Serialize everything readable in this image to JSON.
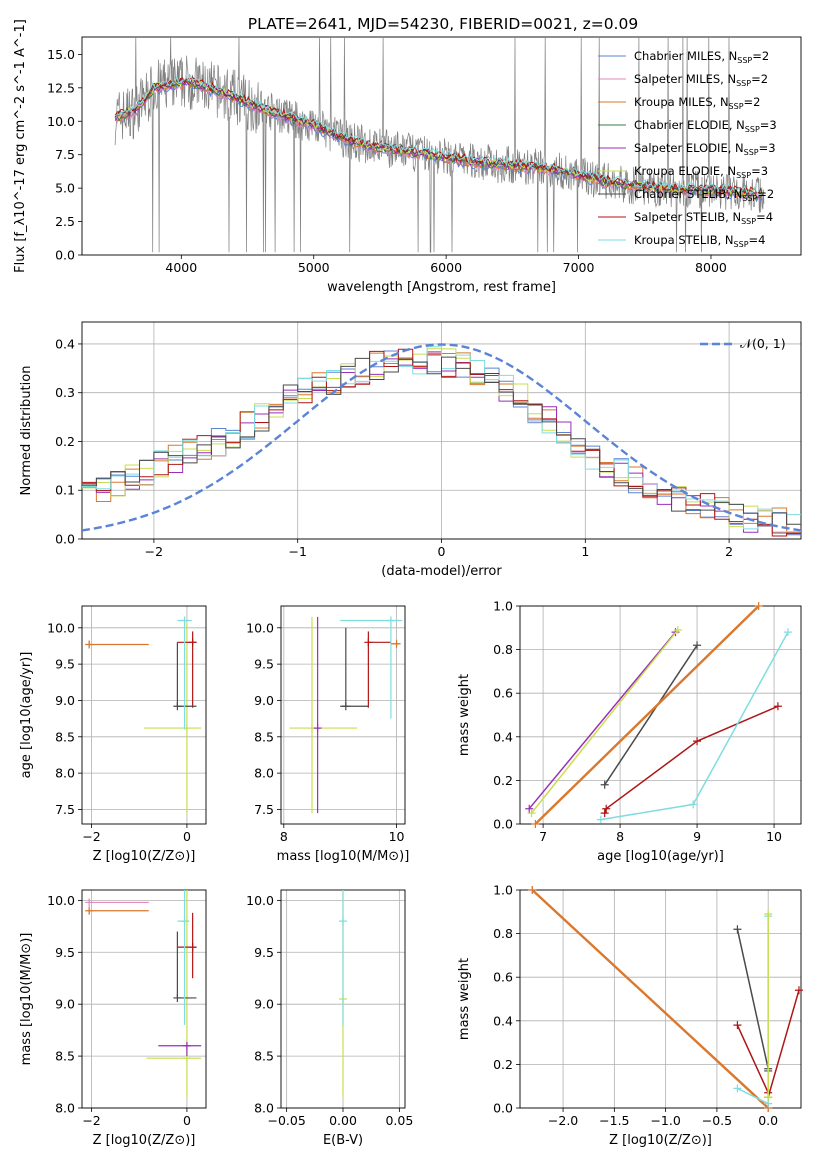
{
  "title": "PLATE=2641, MJD=54230, FIBERID=0021, z=0.09",
  "colors": {
    "chabrier_miles": "#5b84d6",
    "salpeter_miles": "#e389c0",
    "kroupa_miles": "#d9782e",
    "chabrier_elodie": "#3a7d44",
    "salpeter_elodie": "#9b2fb8",
    "kroupa_elodie": "#c9de4f",
    "chabrier_stelib": "#4a4a4a",
    "salpeter_stelib": "#b01515",
    "kroupa_stelib": "#7fdde0",
    "data": "#7f7f7f",
    "gaussian": "#5b84d6",
    "grid": "#b0b0b0"
  },
  "chart_data": [
    {
      "type": "line",
      "panel": "spectrum",
      "xlabel": "wavelength [Angstrom, rest frame]",
      "ylabel": "Flux [f_λ10^-17 erg cm^-2 s^-1 A^-1]",
      "xlim": [
        3250,
        8680
      ],
      "ylim": [
        0,
        16.3
      ],
      "xticks": [
        4000,
        5000,
        6000,
        7000,
        8000
      ],
      "yticks": [
        0.0,
        2.5,
        5.0,
        7.5,
        10.0,
        12.5,
        15.0
      ],
      "ytick_labels": [
        "0.0",
        "2.5",
        "5.0",
        "7.5",
        "10.0",
        "12.5",
        "15.0"
      ],
      "grid": false,
      "legend_position": "top-right",
      "legend": [
        {
          "name": "Chabrier MILES, N",
          "sub": "SSP",
          "suffix": "=2",
          "color_key": "chabrier_miles"
        },
        {
          "name": "Salpeter MILES, N",
          "sub": "SSP",
          "suffix": "=2",
          "color_key": "salpeter_miles"
        },
        {
          "name": "Kroupa MILES, N",
          "sub": "SSP",
          "suffix": "=2",
          "color_key": "kroupa_miles"
        },
        {
          "name": "Chabrier ELODIE, N",
          "sub": "SSP",
          "suffix": "=3",
          "color_key": "chabrier_elodie"
        },
        {
          "name": "Salpeter ELODIE, N",
          "sub": "SSP",
          "suffix": "=3",
          "color_key": "salpeter_elodie"
        },
        {
          "name": "Kroupa ELODIE, N",
          "sub": "SSP",
          "suffix": "=3",
          "color_key": "kroupa_elodie"
        },
        {
          "name": "Chabrier STELIB, N",
          "sub": "SSP",
          "suffix": "=2",
          "color_key": "chabrier_stelib"
        },
        {
          "name": "Salpeter STELIB, N",
          "sub": "SSP",
          "suffix": "=4",
          "color_key": "salpeter_stelib"
        },
        {
          "name": "Kroupa STELIB, N",
          "sub": "SSP",
          "suffix": "=4",
          "color_key": "kroupa_stelib"
        }
      ],
      "continuum": {
        "x": [
          3500,
          3650,
          3800,
          3950,
          4050,
          4200,
          4400,
          4600,
          4800,
          5000,
          5200,
          5400,
          5600,
          5800,
          6000,
          6200,
          6400,
          6600,
          6800,
          7000,
          7200,
          7400,
          7600,
          7800,
          8000,
          8200,
          8400
        ],
        "y": [
          10.3,
          10.8,
          12.5,
          12.8,
          13.0,
          12.5,
          11.8,
          11.0,
          10.3,
          9.7,
          8.8,
          8.2,
          7.9,
          7.6,
          7.3,
          7.0,
          6.8,
          6.6,
          6.4,
          6.0,
          5.5,
          5.2,
          5.0,
          4.9,
          4.8,
          4.7,
          4.5
        ]
      }
    },
    {
      "type": "line",
      "panel": "residual-histogram",
      "xlabel": "(data-model)/error",
      "ylabel": "Normed distribution",
      "xlim": [
        -2.5,
        2.5
      ],
      "ylim": [
        0,
        0.445
      ],
      "xticks": [
        -2,
        -1,
        0,
        1,
        2
      ],
      "xtick_labels": [
        "−2",
        "−1",
        "0",
        "1",
        "2"
      ],
      "yticks": [
        0.0,
        0.1,
        0.2,
        0.3,
        0.4
      ],
      "ytick_labels": [
        "0.0",
        "0.1",
        "0.2",
        "0.3",
        "0.4"
      ],
      "grid": true,
      "legend_position": "top-right",
      "legend_label": "𝒩(0, 1)",
      "gaussian": {
        "mu": 0,
        "sigma": 1
      },
      "histogram_envelope": {
        "x": [
          -2.5,
          -2.2,
          -1.9,
          -1.6,
          -1.3,
          -1.0,
          -0.7,
          -0.4,
          -0.1,
          0.2,
          0.5,
          0.8,
          1.1,
          1.4,
          1.7,
          2.0,
          2.3,
          2.5
        ],
        "y": [
          0.09,
          0.12,
          0.16,
          0.19,
          0.24,
          0.3,
          0.33,
          0.36,
          0.37,
          0.35,
          0.3,
          0.23,
          0.16,
          0.11,
          0.08,
          0.05,
          0.035,
          0.03
        ]
      }
    },
    {
      "type": "scatter",
      "panel": "age-vs-Z",
      "xlabel": "Z [log10(Z/Z⊙)]",
      "ylabel": "age [log10(age/yr)]",
      "xlim": [
        -2.2,
        0.4
      ],
      "ylim": [
        7.3,
        10.3
      ],
      "xticks": [
        -2,
        0
      ],
      "xtick_labels": [
        "−2",
        "0"
      ],
      "yticks": [
        7.5,
        8.0,
        8.5,
        9.0,
        9.5,
        10.0
      ],
      "ytick_labels": [
        "7.5",
        "8.0",
        "8.5",
        "9.0",
        "9.5",
        "10.0"
      ],
      "grid": true,
      "points": [
        {
          "x": -2.05,
          "y": 9.77,
          "x_lo": -2.05,
          "x_hi": -0.8,
          "y_lo": 9.74,
          "y_hi": 9.82,
          "color_key": "kroupa_miles"
        },
        {
          "x": 0.0,
          "y": 8.62,
          "x_lo": -0.9,
          "x_hi": 0.3,
          "y_lo": 7.45,
          "y_hi": 10.1,
          "color_key": "kroupa_elodie"
        },
        {
          "x": 0.12,
          "y": 9.8,
          "x_lo": -0.2,
          "x_hi": 0.2,
          "y_lo": 8.9,
          "y_hi": 9.95,
          "color_key": "salpeter_stelib"
        },
        {
          "x": -0.2,
          "y": 8.92,
          "x_lo": -0.2,
          "x_hi": 0.2,
          "y_lo": 8.92,
          "y_hi": 9.8,
          "color_key": "chabrier_stelib"
        },
        {
          "x": -0.05,
          "y": 10.1,
          "x_lo": -0.2,
          "x_hi": 0.1,
          "y_lo": 8.6,
          "y_hi": 10.15,
          "color_key": "kroupa_stelib"
        }
      ]
    },
    {
      "type": "scatter",
      "panel": "age-vs-mass",
      "xlabel": "mass [log10(M/M⊙)]",
      "ylabel": "",
      "xlim": [
        7.95,
        10.15
      ],
      "ylim": [
        7.3,
        10.3
      ],
      "xticks": [
        8,
        10
      ],
      "xtick_labels": [
        "8",
        "10"
      ],
      "yticks": [
        7.5,
        8.0,
        8.5,
        9.0,
        9.5,
        10.0
      ],
      "ytick_labels": [
        "7.5",
        "8.0",
        "8.5",
        "9.0",
        "9.5",
        "10.0"
      ],
      "grid": true,
      "points": [
        {
          "x": 8.5,
          "y": 8.62,
          "x_lo": 8.1,
          "x_hi": 9.3,
          "y_lo": 7.45,
          "y_hi": 10.15,
          "color_key": "kroupa_elodie"
        },
        {
          "x": 8.6,
          "y": 8.62,
          "x_lo": 8.55,
          "x_hi": 8.65,
          "y_lo": 7.45,
          "y_hi": 10.15,
          "color_key": "salpeter_elodie"
        },
        {
          "x": 9.5,
          "y": 9.8,
          "x_lo": 9.5,
          "x_hi": 9.9,
          "y_lo": 8.9,
          "y_hi": 9.95,
          "color_key": "salpeter_stelib"
        },
        {
          "x": 9.1,
          "y": 8.92,
          "x_lo": 9.0,
          "x_hi": 9.5,
          "y_lo": 8.92,
          "y_hi": 10.0,
          "color_key": "chabrier_stelib"
        },
        {
          "x": 9.9,
          "y": 10.1,
          "x_lo": 9.0,
          "x_hi": 10.1,
          "y_lo": 8.75,
          "y_hi": 10.15,
          "color_key": "kroupa_stelib"
        },
        {
          "x": 10.0,
          "y": 9.78,
          "x_lo": 9.9,
          "x_hi": 10.05,
          "y_lo": 9.76,
          "y_hi": 9.8,
          "color_key": "kroupa_miles"
        }
      ]
    },
    {
      "type": "line",
      "panel": "mass-weight-vs-age",
      "xlabel": "age [log10(age/yr)]",
      "ylabel": "mass weight",
      "xlim": [
        6.7,
        10.35
      ],
      "ylim": [
        0,
        1.0
      ],
      "xticks": [
        7,
        8,
        9,
        10
      ],
      "xtick_labels": [
        "7",
        "8",
        "9",
        "10"
      ],
      "yticks": [
        0.0,
        0.2,
        0.4,
        0.6,
        0.8,
        1.0
      ],
      "ytick_labels": [
        "0.0",
        "0.2",
        "0.4",
        "0.6",
        "0.8",
        "1.0"
      ],
      "grid": true,
      "series": [
        {
          "color_key": "salpeter_elodie",
          "x": [
            6.82,
            8.72
          ],
          "y": [
            0.07,
            0.88
          ]
        },
        {
          "color_key": "kroupa_elodie",
          "x": [
            6.85,
            8.75
          ],
          "y": [
            0.05,
            0.89
          ]
        },
        {
          "color_key": "chabrier_stelib",
          "x": [
            7.8,
            9.0
          ],
          "y": [
            0.18,
            0.82
          ]
        },
        {
          "color_key": "kroupa_miles",
          "x": [
            6.9,
            9.8
          ],
          "y": [
            0.0,
            1.0
          ]
        },
        {
          "color_key": "salpeter_stelib",
          "x": [
            7.8,
            7.82,
            9.0,
            10.05
          ],
          "y": [
            0.05,
            0.07,
            0.38,
            0.54
          ]
        },
        {
          "color_key": "kroupa_stelib",
          "x": [
            7.75,
            8.95,
            10.18
          ],
          "y": [
            0.02,
            0.09,
            0.88
          ]
        }
      ]
    },
    {
      "type": "scatter",
      "panel": "mass-vs-Z",
      "xlabel": "Z [log10(Z/Z⊙)]",
      "ylabel": "mass [log10(M/M⊙)]",
      "xlim": [
        -2.2,
        0.4
      ],
      "ylim": [
        8.0,
        10.1
      ],
      "xticks": [
        -2,
        0
      ],
      "xtick_labels": [
        "−2",
        "0"
      ],
      "yticks": [
        8.0,
        8.5,
        9.0,
        9.5,
        10.0
      ],
      "ytick_labels": [
        "8.0",
        "8.5",
        "9.0",
        "9.5",
        "10.0"
      ],
      "grid": true,
      "points": [
        {
          "x": -2.05,
          "y": 9.98,
          "x_lo": -2.05,
          "x_hi": -0.8,
          "y_lo": 9.97,
          "y_hi": 10.0,
          "color_key": "salpeter_miles"
        },
        {
          "x": -2.05,
          "y": 9.9,
          "x_lo": -2.05,
          "x_hi": -0.8,
          "y_lo": 9.88,
          "y_hi": 9.92,
          "color_key": "kroupa_miles"
        },
        {
          "x": 0.0,
          "y": 8.48,
          "x_lo": -0.85,
          "x_hi": 0.3,
          "y_lo": 8.1,
          "y_hi": 10.1,
          "color_key": "kroupa_elodie"
        },
        {
          "x": 0.0,
          "y": 8.6,
          "x_lo": -0.6,
          "x_hi": 0.3,
          "y_lo": 8.5,
          "y_hi": 8.62,
          "color_key": "salpeter_elodie"
        },
        {
          "x": 0.12,
          "y": 9.55,
          "x_lo": -0.2,
          "x_hi": 0.2,
          "y_lo": 9.25,
          "y_hi": 9.88,
          "color_key": "salpeter_stelib"
        },
        {
          "x": -0.2,
          "y": 9.06,
          "x_lo": -0.2,
          "x_hi": 0.2,
          "y_lo": 9.06,
          "y_hi": 9.7,
          "color_key": "chabrier_stelib"
        },
        {
          "x": -0.05,
          "y": 9.8,
          "x_lo": -0.2,
          "x_hi": 0.05,
          "y_lo": 8.8,
          "y_hi": 10.1,
          "color_key": "kroupa_stelib"
        }
      ]
    },
    {
      "type": "scatter",
      "panel": "mass-vs-EBV",
      "xlabel": "E(B-V)",
      "ylabel": "",
      "xlim": [
        -0.055,
        0.055
      ],
      "ylim": [
        8.0,
        10.1
      ],
      "xticks": [
        -0.05,
        0.0,
        0.05
      ],
      "xtick_labels": [
        "−0.05",
        "0.00",
        "0.05"
      ],
      "yticks": [
        8.0,
        8.5,
        9.0,
        9.5,
        10.0
      ],
      "ytick_labels": [
        "8.0",
        "8.5",
        "9.0",
        "9.5",
        "10.0"
      ],
      "grid": true,
      "points": [
        {
          "x": 0.0,
          "y": 9.05,
          "x_lo": 0.0,
          "x_hi": 0.0,
          "y_lo": 8.1,
          "y_hi": 10.1,
          "color_key": "kroupa_elodie"
        },
        {
          "x": 0.0,
          "y": 9.8,
          "x_lo": 0.0,
          "x_hi": 0.0,
          "y_lo": 8.8,
          "y_hi": 10.1,
          "color_key": "kroupa_stelib"
        }
      ]
    },
    {
      "type": "line",
      "panel": "mass-weight-vs-Z",
      "xlabel": "Z [log10(Z/Z⊙)]",
      "ylabel": "mass weight",
      "xlim": [
        -2.42,
        0.32
      ],
      "ylim": [
        0,
        1.0
      ],
      "xticks": [
        -2.0,
        -1.5,
        -1.0,
        -0.5,
        0.0
      ],
      "xtick_labels": [
        "−2.0",
        "−1.5",
        "−1.0",
        "−0.5",
        "0.0"
      ],
      "yticks": [
        0.0,
        0.2,
        0.4,
        0.6,
        0.8,
        1.0
      ],
      "ytick_labels": [
        "0.0",
        "0.2",
        "0.4",
        "0.6",
        "0.8",
        "1.0"
      ],
      "grid": true,
      "series": [
        {
          "color_key": "salpeter_miles",
          "x": [
            -2.3,
            0.0
          ],
          "y": [
            1.0,
            0.0
          ]
        },
        {
          "color_key": "kroupa_miles",
          "x": [
            -2.3,
            0.0
          ],
          "y": [
            1.0,
            0.0
          ]
        },
        {
          "color_key": "chabrier_stelib",
          "x": [
            -0.3,
            0.0,
            0.0
          ],
          "y": [
            0.82,
            0.18,
            0.17
          ]
        },
        {
          "color_key": "salpeter_stelib",
          "x": [
            -0.3,
            0.0,
            0.0,
            0.3
          ],
          "y": [
            0.38,
            0.07,
            0.05,
            0.54
          ]
        },
        {
          "color_key": "kroupa_stelib",
          "x": [
            -0.3,
            0.0,
            0.0
          ],
          "y": [
            0.09,
            0.02,
            0.88
          ]
        },
        {
          "color_key": "kroupa_elodie",
          "x": [
            0.0,
            0.0
          ],
          "y": [
            0.05,
            0.89
          ]
        }
      ]
    }
  ]
}
